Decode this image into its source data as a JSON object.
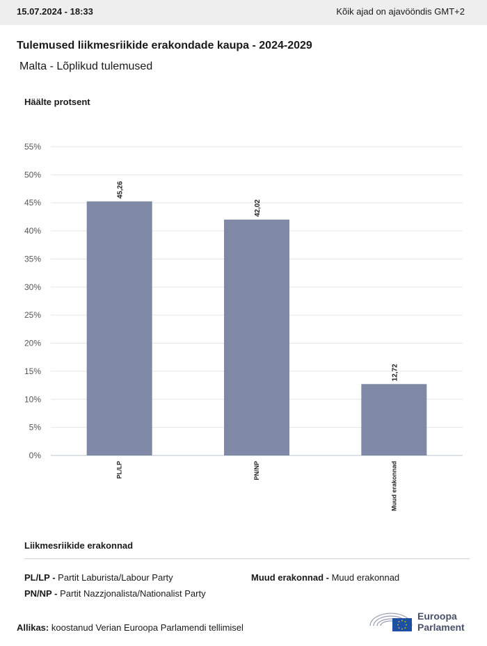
{
  "header": {
    "timestamp": "15.07.2024 - 18:33",
    "timezone_note": "Kõik ajad on ajavööndis GMT+2"
  },
  "chart_data": {
    "type": "bar",
    "title": "Tulemused liikmesriikide erakondade kaupa - 2024-2029",
    "subtitle": "Malta - Lõplikud tulemused",
    "ylabel": "Häälte protsent",
    "xlabel": "",
    "categories": [
      "PL/LP",
      "PN/NP",
      "Muud erakonnad"
    ],
    "values": [
      45.26,
      42.02,
      12.72
    ],
    "value_labels": [
      "45,26",
      "42,02",
      "12,72"
    ],
    "ylim": [
      0,
      55
    ],
    "yticks": [
      "0%",
      "5%",
      "10%",
      "15%",
      "20%",
      "25%",
      "30%",
      "35%",
      "40%",
      "45%",
      "50%",
      "55%"
    ],
    "bar_color": "#7f88a4",
    "grid": true
  },
  "legend": {
    "title": "Liikmesriikide erakonnad",
    "items": [
      {
        "abbr": "PL/LP -",
        "name": "Partit Laburista/Labour Party"
      },
      {
        "abbr": "PN/NP -",
        "name": "Partit Nazzjonalista/Nationalist Party"
      },
      {
        "abbr": "Muud erakonnad -",
        "name": "Muud erakonnad"
      }
    ]
  },
  "footer": {
    "source_label": "Allikas:",
    "source_text": "koostanud Verian Euroopa Parlamendi tellimisel",
    "logo_line1": "Euroopa",
    "logo_line2": "Parlament"
  }
}
